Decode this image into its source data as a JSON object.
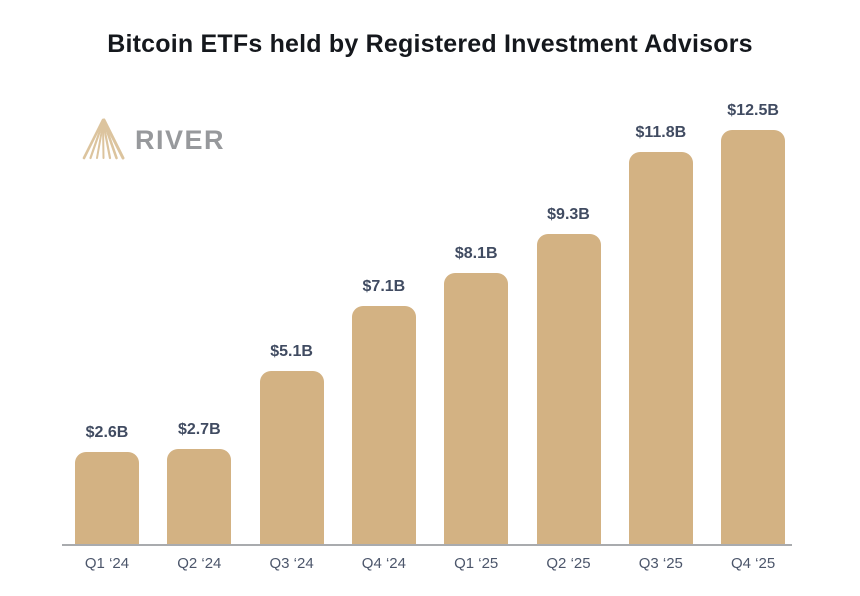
{
  "title": "Bitcoin ETFs held by Registered Investment Advisors",
  "logo": {
    "brand": "RIVER",
    "icon": "river-delta-icon",
    "icon_color": "#dcc49e",
    "text_color": "#97999c"
  },
  "chart_data": {
    "type": "bar",
    "title": "Bitcoin ETFs held by Registered Investment Advisors",
    "categories": [
      "Q1 ‘24",
      "Q2 ‘24",
      "Q3 ‘24",
      "Q4 ‘24",
      "Q1 ‘25",
      "Q2 ‘25",
      "Q3 ‘25",
      "Q4 ‘25"
    ],
    "values": [
      2.6,
      2.7,
      5.1,
      7.1,
      8.1,
      9.3,
      11.8,
      12.5
    ],
    "value_labels": [
      "$2.6B",
      "$2.7B",
      "$5.1B",
      "$7.1B",
      "$8.1B",
      "$9.3B",
      "$11.8B",
      "$12.5B"
    ],
    "unit": "USD billions",
    "xlabel": "",
    "ylabel": "",
    "ylim": [
      0,
      13.5
    ],
    "grid": false,
    "legend": "none",
    "colors": {
      "bar": "#d3b283",
      "value_label": "#404b61",
      "axis_label": "#4c566b",
      "axis_line": "#a9abae",
      "title": "#15181d",
      "background": "#ffffff"
    }
  }
}
